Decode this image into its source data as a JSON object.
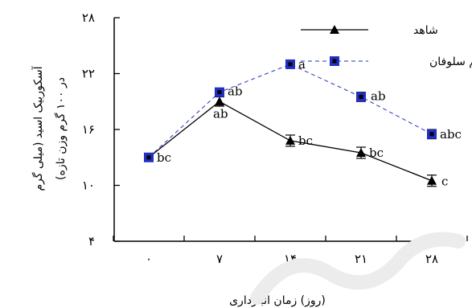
{
  "chart_data": {
    "type": "line",
    "x": [
      "۰",
      "۷",
      "۱۴",
      "۲۱",
      "۲۸"
    ],
    "xlabel": "(روز) زمان انبارداری",
    "ylabel_line1": "آسکوربیک اسید (میلی گرم",
    "ylabel_line2": "در ۱۰۰ گرم وزن تازه)",
    "ylim": [
      4,
      28
    ],
    "yticks": [
      {
        "value": 4,
        "label": "۴"
      },
      {
        "value": 10,
        "label": "۱۰"
      },
      {
        "value": 16,
        "label": "۱۶"
      },
      {
        "value": 22,
        "label": "۲۲"
      },
      {
        "value": 28,
        "label": "۲۸"
      }
    ],
    "legend_position": "top-right",
    "grid": false,
    "series": [
      {
        "name": "شاهد",
        "marker": "triangle",
        "line_style": "solid",
        "color": "#000000",
        "values": [
          13.0,
          19.0,
          14.8,
          13.5,
          10.5
        ],
        "errors": [
          0.4,
          0.5,
          0.6,
          0.6,
          0.6
        ],
        "labels": [
          "bc",
          "ab",
          "bc",
          "bc",
          "c"
        ]
      },
      {
        "name": "فیلم سلوفان",
        "marker": "square",
        "line_style": "dashed",
        "color": "#2030c0",
        "values": [
          13.0,
          20.0,
          23.0,
          19.5,
          15.5
        ],
        "errors": [
          0.4,
          0.4,
          0.4,
          0.5,
          0.5
        ],
        "labels": [
          "",
          "ab",
          "a",
          "ab",
          "abc"
        ]
      }
    ]
  }
}
